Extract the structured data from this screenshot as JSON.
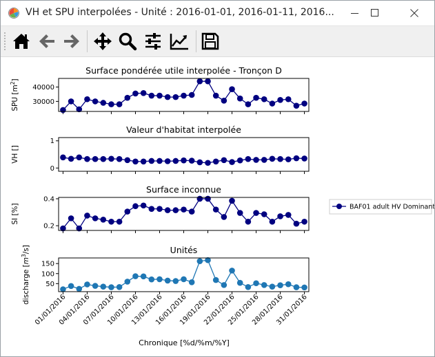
{
  "window": {
    "title": "VH et SPU interpolées - Unité : 2016-01-01, 2016-01-11, 2016...",
    "minimize_icon": "minimize-icon",
    "maximize_icon": "maximize-icon",
    "close_icon": "close-icon"
  },
  "toolbar": {
    "buttons": [
      {
        "name": "home-button",
        "icon": "home-icon"
      },
      {
        "name": "back-button",
        "icon": "arrow-left-icon"
      },
      {
        "name": "forward-button",
        "icon": "arrow-right-icon"
      },
      {
        "name": "pan-button",
        "icon": "move-icon"
      },
      {
        "name": "zoom-button",
        "icon": "search-icon"
      },
      {
        "name": "subplots-button",
        "icon": "sliders-icon"
      },
      {
        "name": "edit-curves-button",
        "icon": "chart-line-icon"
      },
      {
        "name": "save-button",
        "icon": "floppy-disk-icon"
      }
    ]
  },
  "figure": {
    "xlabel": "Chronique [%d/%m/%Y]",
    "legend": "BAF01 adult HV Dominant",
    "colors": {
      "navy": "#000080",
      "blue": "#1f77b4"
    }
  },
  "chart_data": [
    {
      "type": "line",
      "title": "Surface pondérée utile interpolée - Tronçon D",
      "ylabel_text": "SPU [m",
      "ylabel_sup": "2",
      "ylabel_end": "]",
      "yticks": [
        "30000",
        "40000"
      ],
      "ytick_values": [
        30000,
        40000
      ],
      "ylim": [
        23000,
        46000
      ],
      "marker": "circle",
      "color": "#000080",
      "series": [
        {
          "name": "BAF01 adult HV Dominant",
          "values": [
            24000,
            30000,
            24500,
            31500,
            30000,
            29000,
            28000,
            28000,
            32500,
            35500,
            35800,
            34000,
            34000,
            33000,
            33000,
            34000,
            34500,
            44000,
            44000,
            34000,
            30500,
            38500,
            32000,
            28000,
            32500,
            31500,
            28500,
            31000,
            31500,
            27000,
            28500
          ]
        }
      ]
    },
    {
      "type": "line",
      "title": "Valeur d'habitat interpolée",
      "ylabel_text": "VH []",
      "yticks": [
        "0",
        "1"
      ],
      "ytick_values": [
        0,
        1
      ],
      "ylim": [
        -0.12,
        1.12
      ],
      "marker": "circle",
      "color": "#000080",
      "series": [
        {
          "name": "BAF01 adult HV Dominant",
          "values": [
            0.39,
            0.34,
            0.39,
            0.33,
            0.33,
            0.33,
            0.34,
            0.33,
            0.29,
            0.24,
            0.24,
            0.26,
            0.26,
            0.25,
            0.26,
            0.28,
            0.27,
            0.21,
            0.19,
            0.24,
            0.29,
            0.22,
            0.28,
            0.33,
            0.3,
            0.3,
            0.34,
            0.33,
            0.32,
            0.36,
            0.35
          ]
        }
      ]
    },
    {
      "type": "line",
      "title": "Surface inconnue",
      "ylabel_text": "SI [%]",
      "yticks": [
        "0.2",
        "0.4"
      ],
      "ytick_values": [
        0.2,
        0.4
      ],
      "ylim": [
        0.165,
        0.41
      ],
      "marker": "circle",
      "color": "#000080",
      "series": [
        {
          "name": "BAF01 adult HV Dominant",
          "values": [
            0.18,
            0.255,
            0.18,
            0.275,
            0.255,
            0.245,
            0.23,
            0.23,
            0.305,
            0.345,
            0.35,
            0.325,
            0.325,
            0.315,
            0.315,
            0.32,
            0.305,
            0.4,
            0.4,
            0.32,
            0.265,
            0.385,
            0.295,
            0.23,
            0.295,
            0.285,
            0.23,
            0.27,
            0.28,
            0.215,
            0.23
          ]
        }
      ]
    },
    {
      "type": "line",
      "title": "Unités",
      "ylabel_text": "discharge [",
      "ylabel_math": "m",
      "ylabel_sup": "3",
      "ylabel_end": "/s]",
      "yticks": [
        "50",
        "100",
        "150"
      ],
      "ytick_values": [
        50,
        100,
        150
      ],
      "ylim": [
        10,
        178
      ],
      "marker": "circle",
      "color": "#1f77b4",
      "series": [
        {
          "name": "discharge",
          "values": [
            22,
            38,
            24,
            46,
            39,
            35,
            32,
            33,
            60,
            87,
            86,
            71,
            72,
            65,
            63,
            72,
            57,
            162,
            167,
            68,
            43,
            115,
            54,
            33,
            52,
            43,
            35,
            42,
            47,
            32,
            31
          ]
        }
      ]
    }
  ],
  "x_axis": {
    "tick_labels": [
      "01/01/2016",
      "04/01/2016",
      "07/01/2016",
      "10/01/2016",
      "13/01/2016",
      "16/01/2016",
      "19/01/2016",
      "22/01/2016",
      "25/01/2016",
      "28/01/2016",
      "31/01/2016"
    ],
    "tick_days": [
      1,
      4,
      7,
      10,
      13,
      16,
      19,
      22,
      25,
      28,
      31
    ]
  }
}
